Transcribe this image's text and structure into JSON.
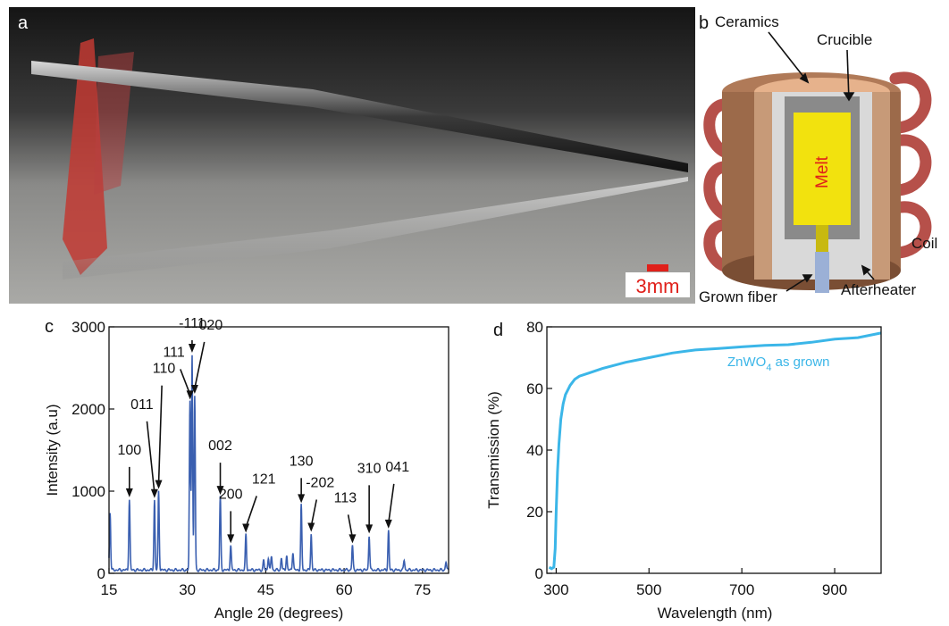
{
  "panels": {
    "a": {
      "letter": "a",
      "scale_bar": {
        "label": "3mm",
        "color": "#e0201a"
      }
    },
    "b": {
      "letter": "b",
      "labels": {
        "ceramics": "Ceramics",
        "crucible": "Crucible",
        "melt": "Melt",
        "coil": "Coil",
        "grown_fiber": "Grown fiber",
        "afterheater": "Afterheater"
      },
      "colors": {
        "ceramics": "#9c6a4a",
        "melt": "#f2e20e",
        "coil": "#b6504a",
        "melt_label": "#e0201a"
      }
    },
    "c": {
      "letter": "c"
    },
    "d": {
      "letter": "d"
    }
  },
  "chart_data": [
    {
      "id": "c",
      "type": "line",
      "xlabel": "Angle 2θ (degrees)",
      "ylabel": "Intensity (a.u)",
      "xlim": [
        15,
        80
      ],
      "ylim": [
        0,
        3000
      ],
      "xticks": [
        15,
        30,
        45,
        60,
        75
      ],
      "yticks": [
        0,
        1000,
        2000,
        3000
      ],
      "color": "#3a5fb0",
      "peaks": [
        {
          "x": 15.2,
          "y": 700
        },
        {
          "x": 18.9,
          "y": 860
        },
        {
          "x": 23.7,
          "y": 850
        },
        {
          "x": 24.5,
          "y": 960
        },
        {
          "x": 30.5,
          "y": 2050
        },
        {
          "x": 30.9,
          "y": 2620
        },
        {
          "x": 31.4,
          "y": 2120
        },
        {
          "x": 36.3,
          "y": 890
        },
        {
          "x": 38.3,
          "y": 300
        },
        {
          "x": 41.2,
          "y": 430
        },
        {
          "x": 44.6,
          "y": 120
        },
        {
          "x": 45.5,
          "y": 150
        },
        {
          "x": 46.1,
          "y": 170
        },
        {
          "x": 48.0,
          "y": 150
        },
        {
          "x": 49.0,
          "y": 180
        },
        {
          "x": 50.2,
          "y": 220
        },
        {
          "x": 51.8,
          "y": 790
        },
        {
          "x": 53.7,
          "y": 440
        },
        {
          "x": 61.6,
          "y": 300
        },
        {
          "x": 64.8,
          "y": 420
        },
        {
          "x": 68.5,
          "y": 480
        },
        {
          "x": 71.5,
          "y": 120
        },
        {
          "x": 79.5,
          "y": 100
        }
      ],
      "annotations": [
        {
          "label": "100",
          "x": 18.9,
          "y": 860,
          "dx": 0,
          "dy": -48
        },
        {
          "label": "011",
          "x": 23.7,
          "y": 850,
          "dx": -14,
          "dy": -100
        },
        {
          "label": "110",
          "x": 24.5,
          "y": 960,
          "dx": 6,
          "dy": -130
        },
        {
          "label": "111",
          "x": 30.5,
          "y": 2050,
          "dx": -18,
          "dy": -48
        },
        {
          "label": "-111",
          "x": 30.9,
          "y": 2620,
          "dx": 0,
          "dy": -28
        },
        {
          "label": "020",
          "x": 31.4,
          "y": 2120,
          "dx": 18,
          "dy": -72
        },
        {
          "label": "002",
          "x": 36.3,
          "y": 890,
          "dx": 0,
          "dy": -50
        },
        {
          "label": "200",
          "x": 38.3,
          "y": 300,
          "dx": 0,
          "dy": -50
        },
        {
          "label": "121",
          "x": 41.2,
          "y": 430,
          "dx": 20,
          "dy": -55
        },
        {
          "label": "130",
          "x": 51.8,
          "y": 790,
          "dx": 0,
          "dy": -42
        },
        {
          "label": "-202",
          "x": 53.7,
          "y": 440,
          "dx": 10,
          "dy": -50
        },
        {
          "label": "113",
          "x": 61.6,
          "y": 300,
          "dx": -8,
          "dy": -46
        },
        {
          "label": "310",
          "x": 64.8,
          "y": 420,
          "dx": 0,
          "dy": -68
        },
        {
          "label": "041",
          "x": 68.5,
          "y": 480,
          "dx": 10,
          "dy": -64
        }
      ]
    },
    {
      "id": "d",
      "type": "line",
      "xlabel": "Wavelength (nm)",
      "ylabel": "Transmission (%)",
      "xlim": [
        280,
        1000
      ],
      "ylim": [
        0,
        80
      ],
      "xticks": [
        300,
        500,
        700,
        900
      ],
      "yticks": [
        0,
        20,
        40,
        60,
        80
      ],
      "color": "#3bb6e8",
      "series": [
        {
          "name": "ZnWO4 as grown",
          "x": [
            285,
            290,
            295,
            298,
            300,
            303,
            306,
            310,
            315,
            320,
            330,
            340,
            350,
            370,
            400,
            450,
            500,
            550,
            600,
            650,
            700,
            750,
            800,
            850,
            900,
            950,
            1000
          ],
          "y": [
            2,
            1.5,
            2,
            8,
            20,
            33,
            42,
            50,
            55,
            58,
            61,
            63,
            64,
            65,
            66.5,
            68.5,
            70,
            71.5,
            72.5,
            73,
            73.5,
            74,
            74.2,
            75,
            76,
            76.5,
            78
          ]
        }
      ],
      "legend_parts": {
        "main": "ZnWO",
        "sub": "4",
        "rest": " as grown"
      }
    }
  ]
}
